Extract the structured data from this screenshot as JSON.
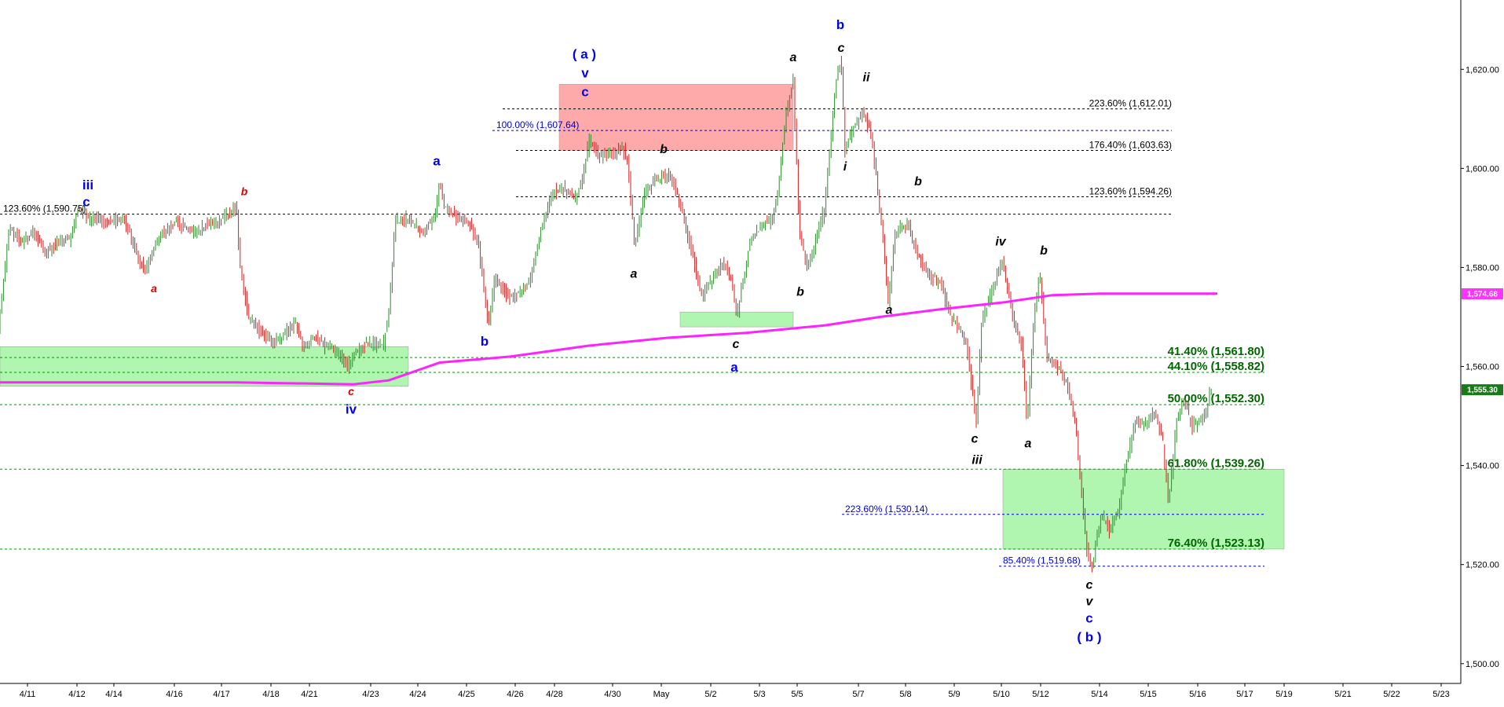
{
  "chart_data": {
    "type": "candlestick",
    "ylim": [
      1496,
      1634
    ],
    "xlim": [
      0,
      1880
    ],
    "y_ticks": [
      {
        "value": 1620,
        "label": "1,620.00"
      },
      {
        "value": 1600,
        "label": "1,600.00"
      },
      {
        "value": 1580,
        "label": "1,580.00"
      },
      {
        "value": 1560,
        "label": "1,560.00"
      },
      {
        "value": 1540,
        "label": "1,540.00"
      },
      {
        "value": 1520,
        "label": "1,520.00"
      },
      {
        "value": 1500,
        "label": "1,500.00"
      }
    ],
    "x_ticks": [
      {
        "t": 35,
        "label": "4/11"
      },
      {
        "t": 98,
        "label": "4/12"
      },
      {
        "t": 145,
        "label": "4/14"
      },
      {
        "t": 222,
        "label": "4/16"
      },
      {
        "t": 282,
        "label": "4/17"
      },
      {
        "t": 345,
        "label": "4/18"
      },
      {
        "t": 394,
        "label": "4/21"
      },
      {
        "t": 472,
        "label": "4/23"
      },
      {
        "t": 532,
        "label": "4/24"
      },
      {
        "t": 594,
        "label": "4/25"
      },
      {
        "t": 656,
        "label": "4/26"
      },
      {
        "t": 706,
        "label": "4/28"
      },
      {
        "t": 780,
        "label": "4/30"
      },
      {
        "t": 842,
        "label": "May"
      },
      {
        "t": 905,
        "label": "5/2"
      },
      {
        "t": 967,
        "label": "5/3"
      },
      {
        "t": 1015,
        "label": "5/5"
      },
      {
        "t": 1093,
        "label": "5/7"
      },
      {
        "t": 1153,
        "label": "5/8"
      },
      {
        "t": 1215,
        "label": "5/9"
      },
      {
        "t": 1275,
        "label": "5/10"
      },
      {
        "t": 1325,
        "label": "5/12"
      },
      {
        "t": 1400,
        "label": "5/14"
      },
      {
        "t": 1462,
        "label": "5/15"
      },
      {
        "t": 1525,
        "label": "5/16"
      },
      {
        "t": 1585,
        "label": "5/17"
      },
      {
        "t": 1635,
        "label": "5/19"
      },
      {
        "t": 1710,
        "label": "5/21"
      },
      {
        "t": 1772,
        "label": "5/22"
      },
      {
        "t": 1835,
        "label": "5/23"
      }
    ],
    "price_path": [
      [
        0,
        1568
      ],
      [
        14,
        1588
      ],
      [
        30,
        1585
      ],
      [
        45,
        1587
      ],
      [
        60,
        1583
      ],
      [
        75,
        1585
      ],
      [
        92,
        1586
      ],
      [
        102,
        1592
      ],
      [
        115,
        1590
      ],
      [
        140,
        1589
      ],
      [
        160,
        1590
      ],
      [
        178,
        1582
      ],
      [
        186,
        1579
      ],
      [
        205,
        1586
      ],
      [
        225,
        1589
      ],
      [
        250,
        1587
      ],
      [
        275,
        1589
      ],
      [
        303,
        1592
      ],
      [
        308,
        1580
      ],
      [
        318,
        1570
      ],
      [
        335,
        1567
      ],
      [
        350,
        1565
      ],
      [
        368,
        1567
      ],
      [
        378,
        1569
      ],
      [
        388,
        1564
      ],
      [
        403,
        1566
      ],
      [
        418,
        1564
      ],
      [
        432,
        1563
      ],
      [
        445,
        1560
      ],
      [
        455,
        1563
      ],
      [
        470,
        1565
      ],
      [
        490,
        1564
      ],
      [
        498,
        1572
      ],
      [
        505,
        1589
      ],
      [
        520,
        1590
      ],
      [
        540,
        1587
      ],
      [
        555,
        1590
      ],
      [
        562,
        1597
      ],
      [
        568,
        1592
      ],
      [
        585,
        1590
      ],
      [
        600,
        1589
      ],
      [
        612,
        1584
      ],
      [
        618,
        1576
      ],
      [
        624,
        1568
      ],
      [
        632,
        1578
      ],
      [
        650,
        1574
      ],
      [
        665,
        1575
      ],
      [
        678,
        1578
      ],
      [
        690,
        1587
      ],
      [
        705,
        1595
      ],
      [
        720,
        1596
      ],
      [
        736,
        1594
      ],
      [
        745,
        1599
      ],
      [
        752,
        1606
      ],
      [
        765,
        1603
      ],
      [
        780,
        1603
      ],
      [
        795,
        1604
      ],
      [
        802,
        1601
      ],
      [
        810,
        1584
      ],
      [
        822,
        1595
      ],
      [
        840,
        1598
      ],
      [
        855,
        1599
      ],
      [
        870,
        1592
      ],
      [
        883,
        1583
      ],
      [
        895,
        1574
      ],
      [
        910,
        1578
      ],
      [
        925,
        1581
      ],
      [
        935,
        1576
      ],
      [
        940,
        1570
      ],
      [
        948,
        1577
      ],
      [
        958,
        1586
      ],
      [
        970,
        1588
      ],
      [
        985,
        1590
      ],
      [
        992,
        1595
      ],
      [
        1002,
        1610
      ],
      [
        1012,
        1618
      ],
      [
        1020,
        1587
      ],
      [
        1030,
        1580
      ],
      [
        1042,
        1586
      ],
      [
        1052,
        1592
      ],
      [
        1060,
        1606
      ],
      [
        1067,
        1618
      ],
      [
        1073,
        1622
      ],
      [
        1078,
        1604
      ],
      [
        1088,
        1608
      ],
      [
        1100,
        1611
      ],
      [
        1110,
        1608
      ],
      [
        1118,
        1598
      ],
      [
        1127,
        1585
      ],
      [
        1133,
        1573
      ],
      [
        1142,
        1587
      ],
      [
        1158,
        1589
      ],
      [
        1165,
        1585
      ],
      [
        1175,
        1581
      ],
      [
        1188,
        1578
      ],
      [
        1200,
        1577
      ],
      [
        1212,
        1570
      ],
      [
        1222,
        1568
      ],
      [
        1232,
        1565
      ],
      [
        1245,
        1549
      ],
      [
        1252,
        1569
      ],
      [
        1262,
        1574
      ],
      [
        1272,
        1579
      ],
      [
        1278,
        1582
      ],
      [
        1290,
        1571
      ],
      [
        1303,
        1564
      ],
      [
        1310,
        1548
      ],
      [
        1318,
        1569
      ],
      [
        1326,
        1579
      ],
      [
        1335,
        1562
      ],
      [
        1348,
        1560
      ],
      [
        1360,
        1557
      ],
      [
        1370,
        1550
      ],
      [
        1377,
        1539
      ],
      [
        1385,
        1524
      ],
      [
        1392,
        1519
      ],
      [
        1398,
        1525
      ],
      [
        1405,
        1530
      ],
      [
        1415,
        1527
      ],
      [
        1426,
        1531
      ],
      [
        1436,
        1541
      ],
      [
        1448,
        1549
      ],
      [
        1462,
        1548
      ],
      [
        1472,
        1551
      ],
      [
        1482,
        1546
      ],
      [
        1490,
        1532
      ],
      [
        1500,
        1549
      ],
      [
        1510,
        1553
      ],
      [
        1520,
        1548
      ],
      [
        1530,
        1549
      ],
      [
        1538,
        1551
      ],
      [
        1543,
        1555
      ]
    ],
    "moving_average": [
      [
        0,
        1556.8
      ],
      [
        150,
        1556.8
      ],
      [
        300,
        1556.8
      ],
      [
        450,
        1556.4
      ],
      [
        495,
        1557.2
      ],
      [
        560,
        1560.8
      ],
      [
        650,
        1562.0
      ],
      [
        750,
        1564.2
      ],
      [
        850,
        1565.8
      ],
      [
        950,
        1566.8
      ],
      [
        1050,
        1568.3
      ],
      [
        1120,
        1570.0
      ],
      [
        1200,
        1571.6
      ],
      [
        1280,
        1573.0
      ],
      [
        1340,
        1574.4
      ],
      [
        1400,
        1574.7
      ],
      [
        1500,
        1574.7
      ],
      [
        1550,
        1574.7
      ]
    ],
    "last_ma": {
      "value": 1574.68,
      "label": "1,574.68",
      "color": "#ff33ff"
    },
    "last_price": {
      "value": 1555.3,
      "label": "1,555.30",
      "color": "#1a7a1a"
    },
    "horizontal_lines": [
      {
        "id": "fib-1612",
        "value": 1612.01,
        "color": "#000000",
        "x0": 640,
        "x1": 1492,
        "label": "223.60% (1,612.01)",
        "lx": 1492,
        "anchor": "end",
        "style": "black"
      },
      {
        "id": "fib-1607",
        "value": 1607.64,
        "color": "#0000cc",
        "x0": 627,
        "x1": 1492,
        "label": "100.00% (1,607.64)",
        "lx": 632,
        "anchor": "start",
        "style": "blue"
      },
      {
        "id": "fib-1603",
        "value": 1603.63,
        "color": "#000000",
        "x0": 657,
        "x1": 1492,
        "label": "176.40% (1,603.63)",
        "lx": 1492,
        "anchor": "end",
        "style": "black"
      },
      {
        "id": "fib-1594",
        "value": 1594.26,
        "color": "#000000",
        "x0": 657,
        "x1": 1492,
        "label": "123.60% (1,594.26)",
        "lx": 1492,
        "anchor": "end",
        "style": "black"
      },
      {
        "id": "fib-1590",
        "value": 1590.75,
        "color": "#000000",
        "x0": 0,
        "x1": 1492,
        "label": "123.60% (1,590.75)",
        "lx": 4,
        "anchor": "start",
        "style": "black"
      },
      {
        "id": "fib-1561",
        "value": 1561.8,
        "color": "#009900",
        "x0": 0,
        "x1": 1610,
        "label": "41.40% (1,561.80)",
        "lx": 1610,
        "anchor": "end",
        "style": "green"
      },
      {
        "id": "fib-1558",
        "value": 1558.82,
        "color": "#009900",
        "x0": 0,
        "x1": 1610,
        "label": "44.10% (1,558.82)",
        "lx": 1610,
        "anchor": "end",
        "style": "green"
      },
      {
        "id": "fib-1552",
        "value": 1552.3,
        "color": "#009900",
        "x0": 0,
        "x1": 1610,
        "label": "50.00% (1,552.30)",
        "lx": 1610,
        "anchor": "end",
        "style": "green"
      },
      {
        "id": "fib-1539",
        "value": 1539.26,
        "color": "#009900",
        "x0": 0,
        "x1": 1610,
        "label": "61.80% (1,539.26)",
        "lx": 1610,
        "anchor": "end",
        "style": "green"
      },
      {
        "id": "fib-1530",
        "value": 1530.14,
        "color": "#0000cc",
        "x0": 1072,
        "x1": 1610,
        "label": "223.60% (1,530.14)",
        "lx": 1076,
        "anchor": "start",
        "style": "blue"
      },
      {
        "id": "fib-1523",
        "value": 1523.13,
        "color": "#009900",
        "x0": 0,
        "x1": 1610,
        "label": "76.40% (1,523.13)",
        "lx": 1610,
        "anchor": "end",
        "style": "green"
      },
      {
        "id": "fib-1519",
        "value": 1519.68,
        "color": "#0000cc",
        "x0": 1272,
        "x1": 1610,
        "label": "85.40% (1,519.68)",
        "lx": 1277,
        "anchor": "start",
        "style": "blue"
      }
    ],
    "zones": [
      {
        "id": "red-zone",
        "t0": 712,
        "t1": 1010,
        "y_top": 1617,
        "y_bottom": 1603.63,
        "fill": "#ffaaaa"
      },
      {
        "id": "green-zone-left",
        "t0": 0,
        "t1": 520,
        "y_top": 1564,
        "y_bottom": 1556,
        "fill": "#b0f5b0"
      },
      {
        "id": "green-zone-mid",
        "t0": 866,
        "t1": 1010,
        "y_top": 1571,
        "y_bottom": 1568,
        "fill": "#b0f5b0"
      },
      {
        "id": "green-zone-right",
        "t0": 1277,
        "t1": 1635,
        "y_top": 1539.26,
        "y_bottom": 1523.13,
        "fill": "#b0f5b0"
      }
    ],
    "wave_labels": [
      {
        "text": "iii",
        "t": 112,
        "y": 1595.8,
        "style": "blue"
      },
      {
        "text": "c",
        "t": 110,
        "y": 1592.4,
        "style": "blue"
      },
      {
        "text": "a",
        "t": 196,
        "y": 1575.0,
        "style": "red"
      },
      {
        "text": "b",
        "t": 311,
        "y": 1594.6,
        "style": "red"
      },
      {
        "text": "c",
        "t": 447,
        "y": 1554.2,
        "style": "red"
      },
      {
        "text": "iv",
        "t": 447,
        "y": 1550.5,
        "style": "blue"
      },
      {
        "text": "a",
        "t": 556,
        "y": 1600.6,
        "style": "blue"
      },
      {
        "text": "b",
        "t": 617,
        "y": 1564.2,
        "style": "blue"
      },
      {
        "text": "( a )",
        "t": 744,
        "y": 1622.2,
        "style": "blue"
      },
      {
        "text": "v",
        "t": 745,
        "y": 1618.4,
        "style": "blue"
      },
      {
        "text": "c",
        "t": 745,
        "y": 1614.6,
        "style": "blue"
      },
      {
        "text": "b",
        "t": 845,
        "y": 1603.1,
        "style": "black"
      },
      {
        "text": "a",
        "t": 807,
        "y": 1577.9,
        "style": "black"
      },
      {
        "text": "c",
        "t": 937,
        "y": 1563.7,
        "style": "black"
      },
      {
        "text": "a",
        "t": 935,
        "y": 1559.0,
        "style": "blue"
      },
      {
        "text": "a",
        "t": 1010,
        "y": 1621.6,
        "style": "black"
      },
      {
        "text": "b",
        "t": 1019,
        "y": 1574.3,
        "style": "black"
      },
      {
        "text": "b",
        "t": 1070,
        "y": 1628.1,
        "style": "blue"
      },
      {
        "text": "c",
        "t": 1071,
        "y": 1623.5,
        "style": "black"
      },
      {
        "text": "ii",
        "t": 1103,
        "y": 1617.6,
        "style": "black"
      },
      {
        "text": "i",
        "t": 1076,
        "y": 1599.6,
        "style": "black"
      },
      {
        "text": "b",
        "t": 1169,
        "y": 1596.6,
        "style": "black"
      },
      {
        "text": "a",
        "t": 1132,
        "y": 1570.6,
        "style": "black"
      },
      {
        "text": "iv",
        "t": 1274,
        "y": 1584.4,
        "style": "black"
      },
      {
        "text": "b",
        "t": 1329,
        "y": 1582.6,
        "style": "black"
      },
      {
        "text": "c",
        "t": 1241,
        "y": 1544.6,
        "style": "black"
      },
      {
        "text": "iii",
        "t": 1244,
        "y": 1540.3,
        "style": "black"
      },
      {
        "text": "a",
        "t": 1309,
        "y": 1543.7,
        "style": "black"
      },
      {
        "text": "c",
        "t": 1387,
        "y": 1515.1,
        "style": "black"
      },
      {
        "text": "v",
        "t": 1387,
        "y": 1511.8,
        "style": "black"
      },
      {
        "text": "c",
        "t": 1387,
        "y": 1508.3,
        "style": "blue"
      },
      {
        "text": "( b )",
        "t": 1387,
        "y": 1504.5,
        "style": "blue"
      }
    ]
  }
}
